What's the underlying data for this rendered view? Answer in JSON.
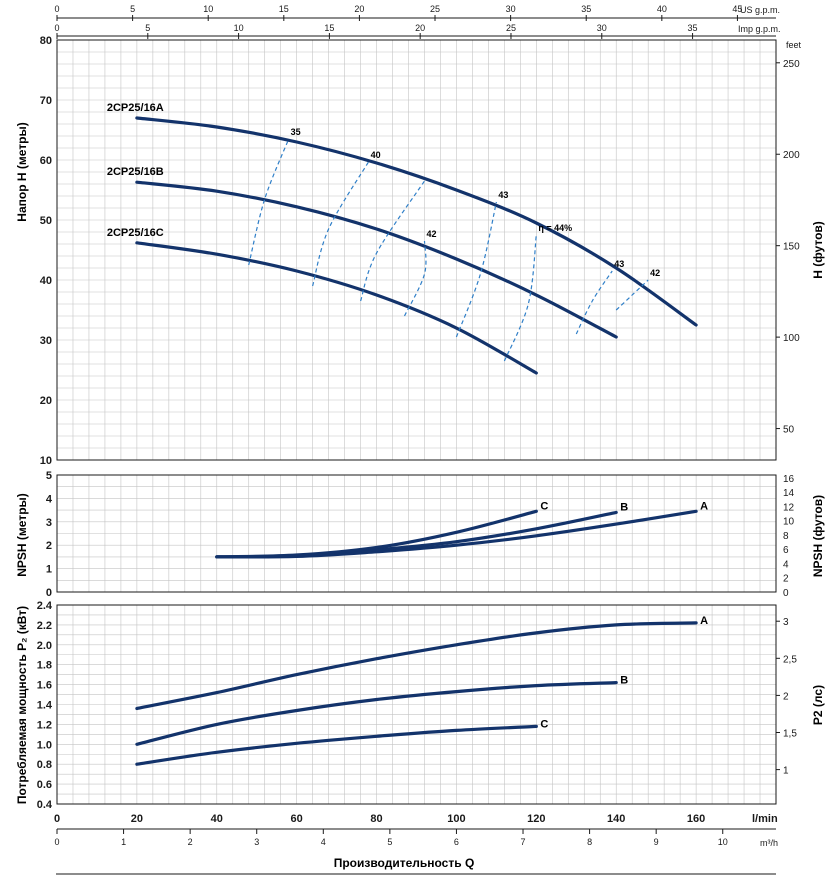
{
  "chart_data": [
    {
      "type": "line",
      "panel": "head",
      "ylabel": "Напор H (метры)",
      "ylabel_right": "H (футов)",
      "xlim": [
        0,
        180
      ],
      "ylim": [
        10,
        80
      ],
      "y_ticks": [
        10,
        20,
        30,
        40,
        50,
        60,
        70,
        80
      ],
      "y_right_unit": "feet",
      "y_right_ticks": [
        50,
        100,
        150,
        200,
        250
      ],
      "series": [
        {
          "name": "2CP25/16A",
          "x": [
            20,
            40,
            60,
            80,
            100,
            120,
            140,
            160
          ],
          "y": [
            67.0,
            65.5,
            63.0,
            59.5,
            55.0,
            49.5,
            42.0,
            32.5
          ]
        },
        {
          "name": "2CP25/16B",
          "x": [
            20,
            40,
            60,
            80,
            100,
            120,
            140
          ],
          "y": [
            56.3,
            54.8,
            52.2,
            48.5,
            43.5,
            37.5,
            30.5
          ]
        },
        {
          "name": "2CP25/16C",
          "x": [
            20,
            40,
            60,
            80,
            100,
            120
          ],
          "y": [
            46.2,
            44.3,
            41.5,
            37.5,
            32.0,
            24.5
          ]
        }
      ],
      "efficiency_curves": [
        {
          "label": "35",
          "x": [
            48,
            52,
            58
          ],
          "y": [
            42.5,
            53.5,
            63.5
          ]
        },
        {
          "label": "40",
          "x": [
            64,
            68,
            78
          ],
          "y": [
            39.0,
            48.5,
            59.7
          ]
        },
        {
          "label": "",
          "x": [
            76,
            80,
            92
          ],
          "y": [
            36.5,
            44.5,
            56.5
          ]
        },
        {
          "label": "42",
          "x": [
            87,
            92,
            92
          ],
          "y": [
            34.0,
            41.0,
            46.5
          ]
        },
        {
          "label": "43",
          "x": [
            100,
            106,
            110
          ],
          "y": [
            30.5,
            41.0,
            53.0
          ]
        },
        {
          "label": "η = 44%",
          "x": [
            112,
            118,
            120
          ],
          "y": [
            26.5,
            36.0,
            47.5
          ]
        },
        {
          "label": "43",
          "x": [
            130,
            134,
            139
          ],
          "y": [
            31.0,
            36.5,
            41.5
          ]
        },
        {
          "label": "42",
          "x": [
            140,
            144,
            148
          ],
          "y": [
            35.0,
            37.5,
            40.0
          ]
        }
      ]
    },
    {
      "type": "line",
      "panel": "npsh",
      "ylabel": "NPSH (метры)",
      "ylabel_right": "NPSH (футов)",
      "xlim": [
        0,
        180
      ],
      "ylim": [
        0,
        5
      ],
      "y_ticks": [
        0,
        1,
        2,
        3,
        4,
        5
      ],
      "y_right_ticks": [
        0,
        2,
        4,
        6,
        8,
        10,
        12,
        14,
        16
      ],
      "series": [
        {
          "name": "A",
          "x": [
            40,
            60,
            80,
            100,
            120,
            140,
            160
          ],
          "y": [
            1.5,
            1.52,
            1.72,
            2.0,
            2.4,
            2.9,
            3.45
          ]
        },
        {
          "name": "B",
          "x": [
            40,
            60,
            80,
            100,
            120,
            140
          ],
          "y": [
            1.5,
            1.55,
            1.8,
            2.15,
            2.7,
            3.4
          ]
        },
        {
          "name": "C",
          "x": [
            40,
            60,
            80,
            100,
            120
          ],
          "y": [
            1.5,
            1.58,
            1.9,
            2.55,
            3.45
          ]
        }
      ]
    },
    {
      "type": "line",
      "panel": "power",
      "ylabel": "Потребляемая мощность P₂ (кВт)",
      "ylabel_right": "P2 (лс)",
      "xlabel": "Производительность Q",
      "xlim": [
        0,
        180
      ],
      "ylim": [
        0.4,
        2.4
      ],
      "y_ticks": [
        "0.4",
        "0.6",
        "0.8",
        "1.0",
        "1.2",
        "1.4",
        "1.6",
        "1.8",
        "2.0",
        "2.2",
        "2.4"
      ],
      "y_right_ticks": [
        [
          "1",
          1
        ],
        [
          "1,5",
          1.5
        ],
        [
          "2",
          2
        ],
        [
          "2,5",
          2.5
        ],
        [
          "3",
          3
        ]
      ],
      "series": [
        {
          "name": "A",
          "x": [
            20,
            40,
            60,
            80,
            100,
            120,
            140,
            160
          ],
          "y": [
            1.36,
            1.52,
            1.7,
            1.86,
            2.0,
            2.12,
            2.2,
            2.22
          ]
        },
        {
          "name": "B",
          "x": [
            20,
            40,
            60,
            80,
            100,
            120,
            140
          ],
          "y": [
            1.0,
            1.2,
            1.34,
            1.45,
            1.53,
            1.59,
            1.62
          ]
        },
        {
          "name": "C",
          "x": [
            20,
            40,
            60,
            80,
            100,
            120
          ],
          "y": [
            0.8,
            0.92,
            1.01,
            1.08,
            1.14,
            1.18
          ]
        }
      ]
    }
  ],
  "x_axes": {
    "lmin_label": "l/min",
    "lmin_ticks": [
      0,
      20,
      40,
      60,
      80,
      100,
      120,
      140,
      160
    ],
    "m3h_label": "m³/h",
    "m3h_ticks": [
      0,
      1,
      2,
      3,
      4,
      5,
      6,
      7,
      8,
      9,
      10
    ],
    "us_gpm_label": "US g.p.m.",
    "us_gpm_ticks": [
      0,
      5,
      10,
      15,
      20,
      25,
      30,
      35,
      40,
      45
    ],
    "imp_gpm_label": "Imp g.p.m.",
    "imp_gpm_ticks": [
      0,
      5,
      10,
      15,
      20,
      25,
      30,
      35
    ],
    "xlabel": "Производительность Q"
  },
  "colors": {
    "curve": "#13336b",
    "efficiency": "#2f7fc8",
    "grid": "#c4c4c4"
  }
}
